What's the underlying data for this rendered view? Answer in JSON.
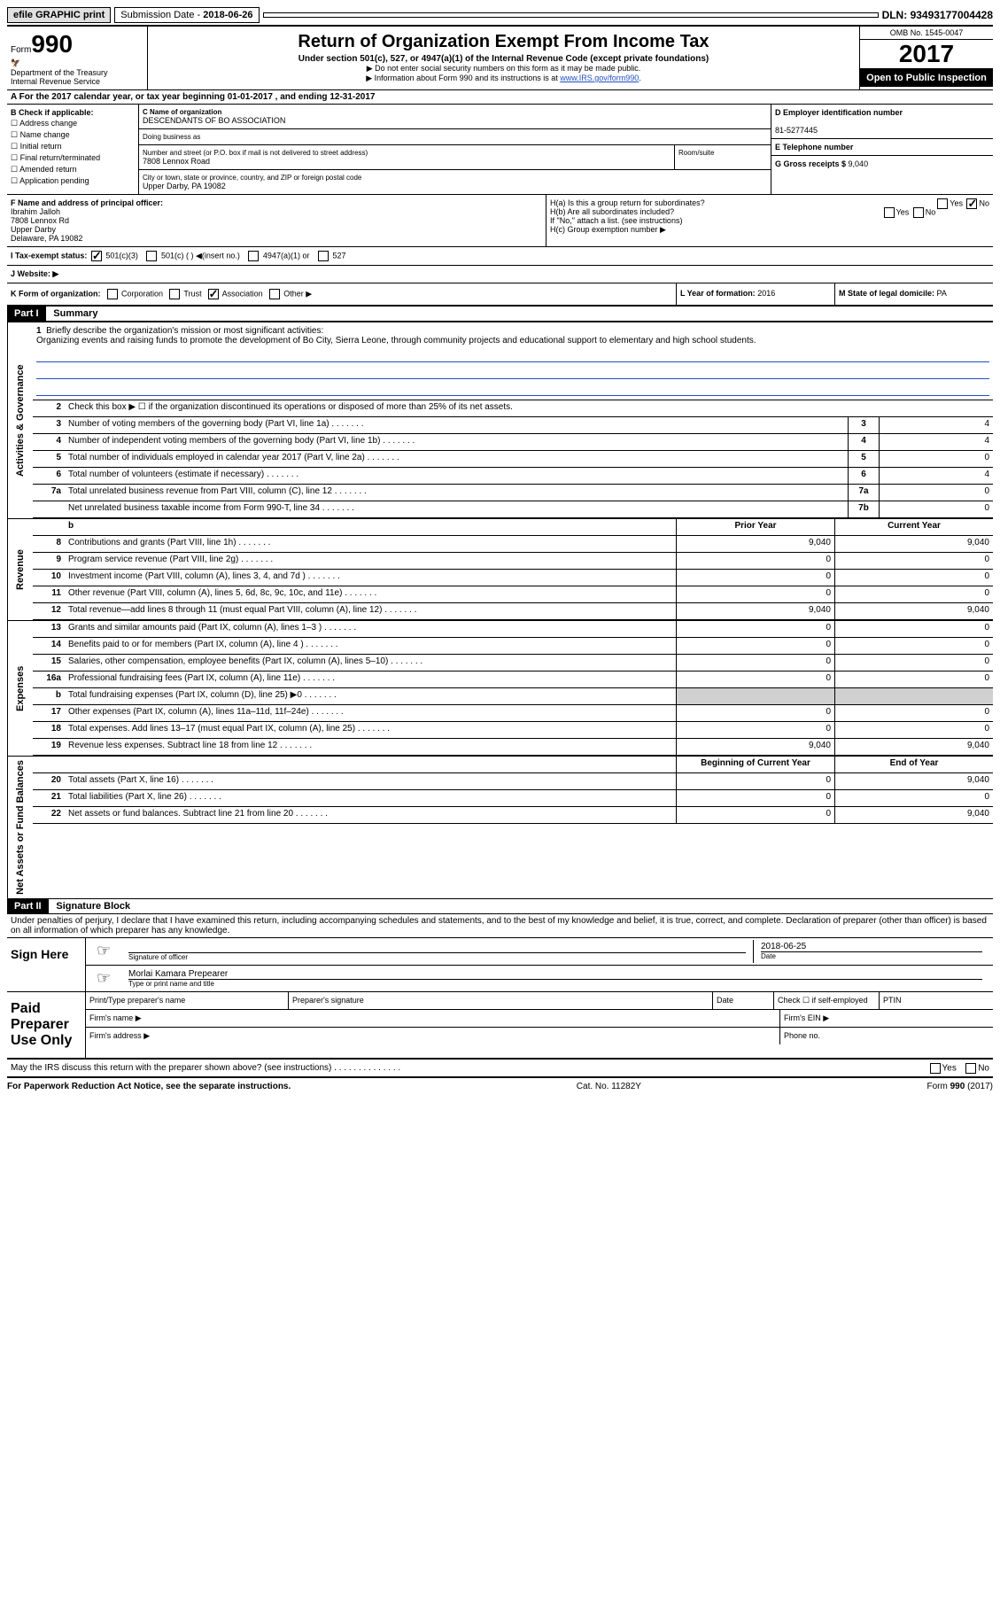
{
  "topbar": {
    "efile": "efile GRAPHIC print",
    "sub_date_label": "Submission Date - ",
    "sub_date": "2018-06-26",
    "dln_label": "DLN: ",
    "dln": "93493177004428"
  },
  "header": {
    "form_label": "Form",
    "form_num": "990",
    "dept": "Department of the Treasury\nInternal Revenue Service",
    "title": "Return of Organization Exempt From Income Tax",
    "sub": "Under section 501(c), 527, or 4947(a)(1) of the Internal Revenue Code (except private foundations)",
    "note1": "▶ Do not enter social security numbers on this form as it may be made public.",
    "note2_pre": "▶ Information about Form 990 and its instructions is at ",
    "note2_link": "www.IRS.gov/form990",
    "omb": "OMB No. 1545-0047",
    "year": "2017",
    "inspect": "Open to Public Inspection"
  },
  "row_a": "A For the 2017 calendar year, or tax year beginning 01-01-2017   , and ending 12-31-2017",
  "section_b": {
    "b_label": "B Check if applicable:",
    "checks": [
      "Address change",
      "Name change",
      "Initial return",
      "Final return/terminated",
      "Amended return",
      "Application pending"
    ],
    "c_label": "C Name of organization",
    "org_name": "DESCENDANTS OF BO ASSOCIATION",
    "dba": "Doing business as",
    "addr_label": "Number and street (or P.O. box if mail is not delivered to street address)",
    "room_label": "Room/suite",
    "addr": "7808 Lennox Road",
    "city_label": "City or town, state or province, country, and ZIP or foreign postal code",
    "city": "Upper Darby, PA  19082",
    "d_label": "D Employer identification number",
    "ein": "81-5277445",
    "e_label": "E Telephone number",
    "g_label": "G Gross receipts $ ",
    "g_val": "9,040"
  },
  "section_f": {
    "f_label": "F  Name and address of principal officer:",
    "officer": "Ibrahim Jalloh\n7808 Lennox Rd\nUpper Darby\nDelaware, PA  19082",
    "ha": "H(a)  Is this a group return for subordinates?",
    "hb": "H(b)  Are all subordinates included?",
    "h_note": "If \"No,\" attach a list. (see instructions)",
    "hc": "H(c)  Group exemption number ▶",
    "yes": "Yes",
    "no": "No"
  },
  "row_i": {
    "i_label": "I  Tax-exempt status:",
    "opts": [
      "501(c)(3)",
      "501(c) (  ) ◀(insert no.)",
      "4947(a)(1) or",
      "527"
    ],
    "j_label": "J  Website: ▶"
  },
  "row_k": {
    "k_label": "K Form of organization:",
    "opts": [
      "Corporation",
      "Trust",
      "Association",
      "Other ▶"
    ],
    "l_label": "L Year of formation: ",
    "l_val": "2016",
    "m_label": "M State of legal domicile: ",
    "m_val": "PA"
  },
  "part1": {
    "header": "Part I",
    "title": "Summary",
    "q1": "Briefly describe the organization's mission or most significant activities:",
    "mission": "Organizing events and raising funds to promote the development of Bo City, Sierra Leone, through community projects and educational support to elementary and high school students.",
    "q2": "Check this box ▶ ☐  if the organization discontinued its operations or disposed of more than 25% of its net assets.",
    "governance_label": "Activities & Governance",
    "revenue_label": "Revenue",
    "expenses_label": "Expenses",
    "netassets_label": "Net Assets or Fund Balances",
    "rows_gov": [
      {
        "n": "3",
        "d": "Number of voting members of the governing body (Part VI, line 1a)",
        "sn": "3",
        "v": "4"
      },
      {
        "n": "4",
        "d": "Number of independent voting members of the governing body (Part VI, line 1b)",
        "sn": "4",
        "v": "4"
      },
      {
        "n": "5",
        "d": "Total number of individuals employed in calendar year 2017 (Part V, line 2a)",
        "sn": "5",
        "v": "0"
      },
      {
        "n": "6",
        "d": "Total number of volunteers (estimate if necessary)",
        "sn": "6",
        "v": "4"
      },
      {
        "n": "7a",
        "d": "Total unrelated business revenue from Part VIII, column (C), line 12",
        "sn": "7a",
        "v": "0"
      },
      {
        "n": "",
        "d": "Net unrelated business taxable income from Form 990-T, line 34",
        "sn": "7b",
        "v": "0"
      }
    ],
    "col_hdr_prior": "Prior Year",
    "col_hdr_curr": "Current Year",
    "rows_rev": [
      {
        "n": "8",
        "d": "Contributions and grants (Part VIII, line 1h)",
        "p": "9,040",
        "c": "9,040"
      },
      {
        "n": "9",
        "d": "Program service revenue (Part VIII, line 2g)",
        "p": "0",
        "c": "0"
      },
      {
        "n": "10",
        "d": "Investment income (Part VIII, column (A), lines 3, 4, and 7d )",
        "p": "0",
        "c": "0"
      },
      {
        "n": "11",
        "d": "Other revenue (Part VIII, column (A), lines 5, 6d, 8c, 9c, 10c, and 11e)",
        "p": "0",
        "c": "0"
      },
      {
        "n": "12",
        "d": "Total revenue—add lines 8 through 11 (must equal Part VIII, column (A), line 12)",
        "p": "9,040",
        "c": "9,040"
      }
    ],
    "rows_exp": [
      {
        "n": "13",
        "d": "Grants and similar amounts paid (Part IX, column (A), lines 1–3 )",
        "p": "0",
        "c": "0"
      },
      {
        "n": "14",
        "d": "Benefits paid to or for members (Part IX, column (A), line 4 )",
        "p": "0",
        "c": "0"
      },
      {
        "n": "15",
        "d": "Salaries, other compensation, employee benefits (Part IX, column (A), lines 5–10)",
        "p": "0",
        "c": "0"
      },
      {
        "n": "16a",
        "d": "Professional fundraising fees (Part IX, column (A), line 11e)",
        "p": "0",
        "c": "0"
      },
      {
        "n": "b",
        "d": "Total fundraising expenses (Part IX, column (D), line 25) ▶0",
        "p": "shaded",
        "c": "shaded"
      },
      {
        "n": "17",
        "d": "Other expenses (Part IX, column (A), lines 11a–11d, 11f–24e)",
        "p": "0",
        "c": "0"
      },
      {
        "n": "18",
        "d": "Total expenses. Add lines 13–17 (must equal Part IX, column (A), line 25)",
        "p": "0",
        "c": "0"
      },
      {
        "n": "19",
        "d": "Revenue less expenses. Subtract line 18 from line 12",
        "p": "9,040",
        "c": "9,040"
      }
    ],
    "col_hdr_beg": "Beginning of Current Year",
    "col_hdr_end": "End of Year",
    "rows_net": [
      {
        "n": "20",
        "d": "Total assets (Part X, line 16)",
        "p": "0",
        "c": "9,040"
      },
      {
        "n": "21",
        "d": "Total liabilities (Part X, line 26)",
        "p": "0",
        "c": "0"
      },
      {
        "n": "22",
        "d": "Net assets or fund balances. Subtract line 21 from line 20",
        "p": "0",
        "c": "9,040"
      }
    ]
  },
  "part2": {
    "header": "Part II",
    "title": "Signature Block",
    "perjury": "Under penalties of perjury, I declare that I have examined this return, including accompanying schedules and statements, and to the best of my knowledge and belief, it is true, correct, and complete. Declaration of preparer (other than officer) is based on all information of which preparer has any knowledge.",
    "sign_here": "Sign Here",
    "sig_officer": "Signature of officer",
    "sig_date": "2018-06-25",
    "date_lbl": "Date",
    "typed_name": "Morlai Kamara  Prepearer",
    "type_print": "Type or print name and title",
    "paid_label": "Paid Preparer Use Only",
    "pp_name": "Print/Type preparer's name",
    "pp_sig": "Preparer's signature",
    "pp_date": "Date",
    "pp_check": "Check ☐ if self-employed",
    "ptin": "PTIN",
    "firm_name": "Firm's name  ▶",
    "firm_ein": "Firm's EIN ▶",
    "firm_addr": "Firm's address ▶",
    "phone": "Phone no."
  },
  "footer": {
    "discuss": "May the IRS discuss this return with the preparer shown above? (see instructions)   .   .   .   .   .   .   .   .   .   .   .   .   .   .",
    "yes": "Yes",
    "no": "No",
    "paperwork": "For Paperwork Reduction Act Notice, see the separate instructions.",
    "cat": "Cat. No. 11282Y",
    "form": "Form 990 (2017)"
  }
}
